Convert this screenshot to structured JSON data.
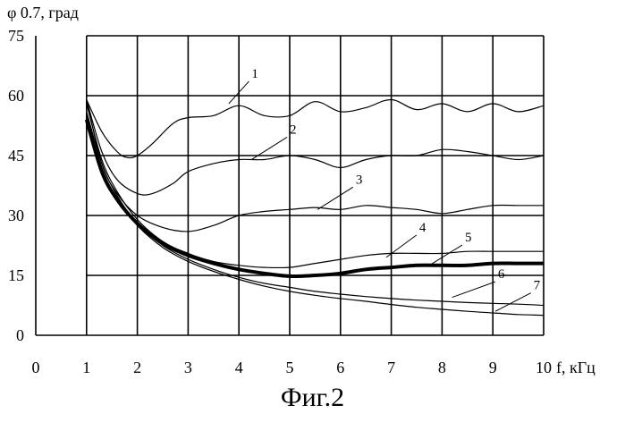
{
  "caption": "Фиг.2",
  "chart_data": {
    "type": "line",
    "ylabel": "φ 0.7, град",
    "xlabel": "f, кГц",
    "xlim": [
      0,
      10
    ],
    "ylim": [
      0,
      75
    ],
    "xticks": [
      "0",
      "1",
      "2",
      "3",
      "4",
      "5",
      "6",
      "7",
      "8",
      "9",
      "10"
    ],
    "yticks": [
      "0",
      "15",
      "30",
      "45",
      "60",
      "75"
    ],
    "grid": true,
    "series": [
      {
        "name": "1",
        "x": [
          1,
          1.3,
          1.6,
          1.8,
          2,
          2.3,
          2.7,
          3,
          3.5,
          4,
          4.5,
          5,
          5.5,
          6,
          6.5,
          7,
          7.5,
          8,
          8.5,
          9,
          9.5,
          10
        ],
        "y": [
          59,
          51,
          46,
          44.5,
          45,
          48,
          53,
          54.5,
          55,
          57.5,
          55,
          55,
          58.5,
          56,
          57,
          59,
          56.5,
          58,
          56,
          58,
          56,
          57.5
        ]
      },
      {
        "name": "2",
        "x": [
          1,
          1.3,
          1.6,
          2,
          2.3,
          2.7,
          3,
          3.5,
          4,
          4.5,
          5,
          5.5,
          6,
          6.5,
          7,
          7.5,
          8,
          8.5,
          9,
          9.5,
          10
        ],
        "y": [
          59,
          46,
          39,
          35.5,
          35.5,
          38,
          41,
          43,
          44,
          44,
          45,
          44,
          42,
          44,
          45,
          45,
          46.5,
          46,
          45,
          44,
          45
        ]
      },
      {
        "name": "3",
        "x": [
          1,
          1.3,
          1.6,
          2,
          2.5,
          3,
          3.5,
          4,
          4.5,
          5,
          5.5,
          6,
          6.5,
          7,
          7.5,
          8,
          8.5,
          9,
          9.5,
          10
        ],
        "y": [
          59,
          43,
          35.5,
          30,
          27,
          26,
          27.5,
          30,
          31,
          31.5,
          32,
          31.5,
          32.5,
          32,
          31.5,
          30.5,
          31.5,
          32.5,
          32.5,
          32.5
        ]
      },
      {
        "name": "4",
        "x": [
          1,
          1.3,
          1.6,
          2,
          2.5,
          3,
          3.5,
          4,
          4.5,
          5,
          5.5,
          6,
          6.5,
          7,
          7.5,
          8,
          8.5,
          9,
          9.5,
          10
        ],
        "y": [
          58,
          44,
          36,
          29,
          23.5,
          20.5,
          18.5,
          17.5,
          17,
          17,
          18,
          19,
          20,
          20.5,
          20.5,
          20.5,
          21,
          21,
          21,
          21
        ]
      },
      {
        "name": "5",
        "x": [
          1,
          1.3,
          1.6,
          2,
          2.5,
          3,
          3.5,
          4,
          4.5,
          5,
          5.5,
          6,
          6.5,
          7,
          7.5,
          8,
          8.5,
          9,
          9.5,
          10
        ],
        "y": [
          54,
          41,
          34,
          28,
          23,
          20,
          18,
          16.5,
          15.5,
          14.8,
          15,
          15.5,
          16.5,
          17,
          17.5,
          17.5,
          17.5,
          18,
          18,
          18
        ]
      },
      {
        "name": "6",
        "x": [
          1,
          1.3,
          1.6,
          2,
          2.5,
          3,
          3.5,
          4,
          4.5,
          5,
          5.5,
          6,
          6.5,
          7,
          7.5,
          8,
          8.5,
          9,
          9.5,
          10
        ],
        "y": [
          56,
          43,
          35,
          28,
          22.5,
          19,
          16.5,
          14.5,
          13,
          12,
          11,
          10.3,
          9.7,
          9.2,
          8.8,
          8.5,
          8.2,
          8,
          7.8,
          7.5
        ]
      },
      {
        "name": "7",
        "x": [
          1,
          1.3,
          1.6,
          2,
          2.5,
          3,
          3.5,
          4,
          4.5,
          5,
          5.5,
          6,
          6.5,
          7,
          7.5,
          8,
          8.5,
          9,
          9.5,
          10
        ],
        "y": [
          55,
          42,
          34,
          27.5,
          22,
          18.5,
          16,
          14,
          12.3,
          11,
          10,
          9.2,
          8.5,
          7.7,
          7,
          6.5,
          6,
          5.6,
          5.2,
          5
        ]
      }
    ],
    "annotations": [
      {
        "text": "1",
        "x": 4.25,
        "y": 64.5,
        "tx": 3.8,
        "ty": 58
      },
      {
        "text": "2",
        "x": 5.0,
        "y": 50.5,
        "tx": 4.25,
        "ty": 44
      },
      {
        "text": "3",
        "x": 6.3,
        "y": 38,
        "tx": 5.55,
        "ty": 31.5
      },
      {
        "text": "4",
        "x": 7.55,
        "y": 26,
        "tx": 6.9,
        "ty": 19.5
      },
      {
        "text": "5",
        "x": 8.45,
        "y": 23.5,
        "tx": 7.75,
        "ty": 17.5
      },
      {
        "text": "6",
        "x": 9.1,
        "y": 14.3,
        "tx": 8.2,
        "ty": 9.5
      },
      {
        "text": "7",
        "x": 9.8,
        "y": 11.5,
        "tx": 9.05,
        "ty": 6
      }
    ]
  }
}
